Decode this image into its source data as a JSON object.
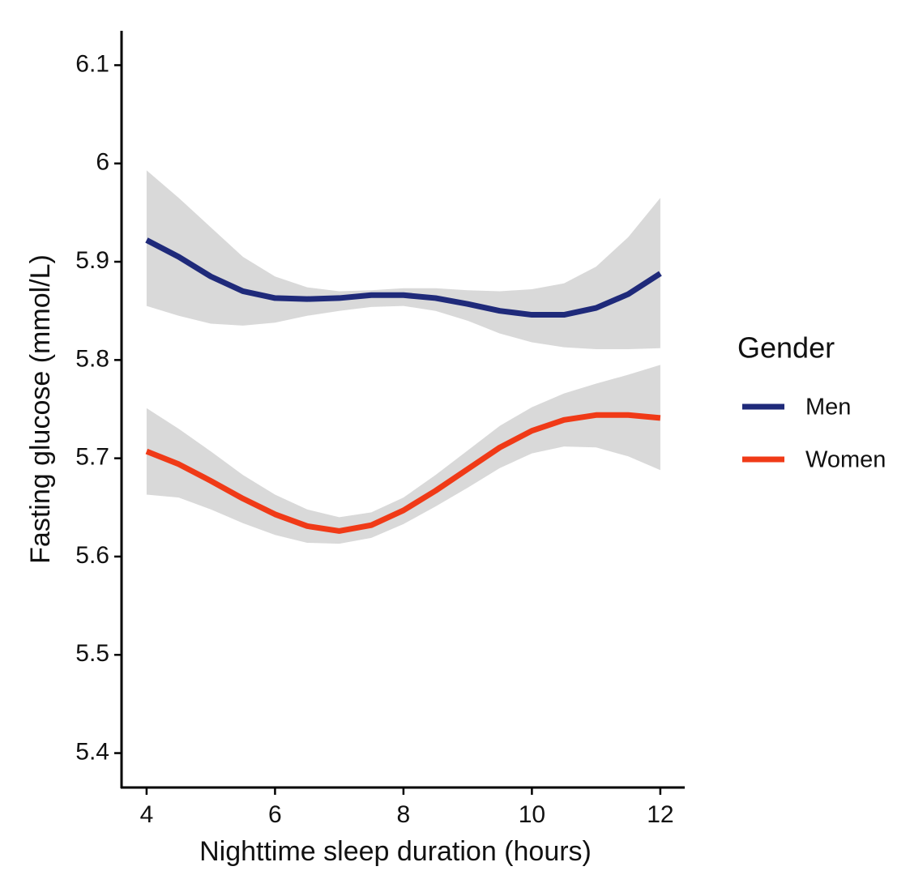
{
  "chart_data": {
    "type": "line",
    "x_label": "Nighttime sleep duration (hours)",
    "y_label": "Fasting glucose (mmol/L)",
    "legend_title": "Gender",
    "legend": "right",
    "band_color": "#d9d9d9",
    "x": [
      4,
      4.5,
      5,
      5.5,
      6,
      6.5,
      7,
      7.5,
      8,
      8.5,
      9,
      9.5,
      10,
      10.5,
      11,
      11.5,
      12
    ],
    "series": [
      {
        "name": "Men",
        "color": "#1f2a7a",
        "values": [
          5.922,
          5.905,
          5.885,
          5.87,
          5.863,
          5.862,
          5.863,
          5.866,
          5.866,
          5.863,
          5.857,
          5.85,
          5.846,
          5.846,
          5.853,
          5.867,
          5.888
        ],
        "upper": [
          5.993,
          5.965,
          5.935,
          5.905,
          5.885,
          5.874,
          5.87,
          5.871,
          5.873,
          5.873,
          5.871,
          5.87,
          5.872,
          5.878,
          5.895,
          5.925,
          5.965
        ],
        "lower": [
          5.855,
          5.845,
          5.837,
          5.835,
          5.838,
          5.845,
          5.85,
          5.854,
          5.855,
          5.85,
          5.84,
          5.827,
          5.818,
          5.813,
          5.811,
          5.811,
          5.812
        ]
      },
      {
        "name": "Women",
        "color": "#f03a17",
        "values": [
          5.707,
          5.694,
          5.677,
          5.659,
          5.643,
          5.631,
          5.626,
          5.632,
          5.647,
          5.667,
          5.689,
          5.711,
          5.728,
          5.739,
          5.744,
          5.744,
          5.741
        ],
        "upper": [
          5.751,
          5.73,
          5.707,
          5.683,
          5.663,
          5.648,
          5.64,
          5.645,
          5.66,
          5.683,
          5.708,
          5.733,
          5.752,
          5.766,
          5.776,
          5.785,
          5.795
        ],
        "lower": [
          5.663,
          5.66,
          5.648,
          5.634,
          5.622,
          5.614,
          5.613,
          5.619,
          5.633,
          5.651,
          5.67,
          5.69,
          5.705,
          5.712,
          5.711,
          5.702,
          5.688
        ]
      }
    ],
    "xlim": [
      3.61,
      12.38
    ],
    "xticks": [
      4,
      6,
      8,
      10,
      12
    ],
    "ylim": [
      5.365,
      6.135
    ],
    "yticks": [
      5.4,
      5.5,
      5.6,
      5.7,
      5.8,
      5.9,
      6.0,
      6.1
    ],
    "grid": false
  }
}
